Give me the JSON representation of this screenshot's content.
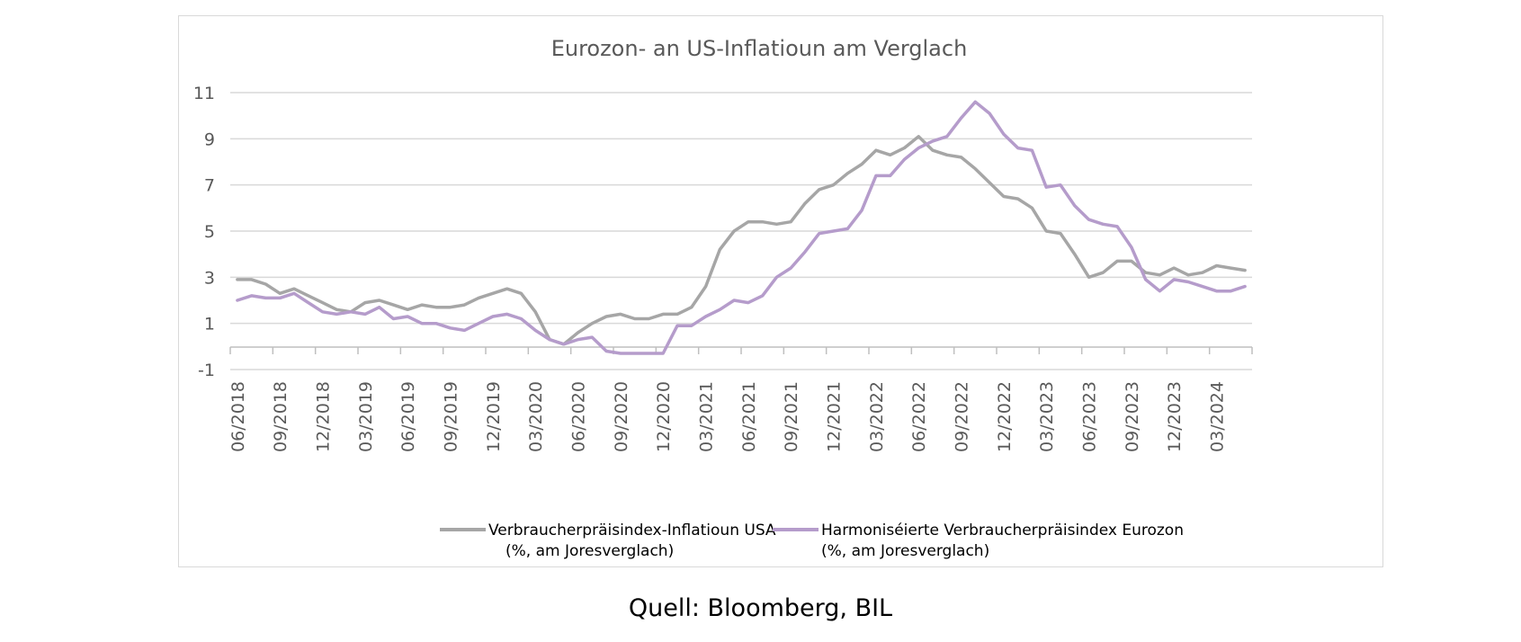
{
  "source": "Quell: Bloomberg, BIL",
  "chart_data": {
    "type": "line",
    "title": "Eurozon- an US-Inflatioun am Verglach",
    "xlabel": "",
    "ylabel": "",
    "ylim": [
      -1,
      11
    ],
    "yticks": [
      11,
      9,
      7,
      5,
      3,
      1,
      -1
    ],
    "grid": true,
    "legend_position": "bottom",
    "x": [
      "06/2018",
      "07/2018",
      "08/2018",
      "09/2018",
      "10/2018",
      "11/2018",
      "12/2018",
      "01/2019",
      "02/2019",
      "03/2019",
      "04/2019",
      "05/2019",
      "06/2019",
      "07/2019",
      "08/2019",
      "09/2019",
      "10/2019",
      "11/2019",
      "12/2019",
      "01/2020",
      "02/2020",
      "03/2020",
      "04/2020",
      "05/2020",
      "06/2020",
      "07/2020",
      "08/2020",
      "09/2020",
      "10/2020",
      "11/2020",
      "12/2020",
      "01/2021",
      "02/2021",
      "03/2021",
      "04/2021",
      "05/2021",
      "06/2021",
      "07/2021",
      "08/2021",
      "09/2021",
      "10/2021",
      "11/2021",
      "12/2021",
      "01/2022",
      "02/2022",
      "03/2022",
      "04/2022",
      "05/2022",
      "06/2022",
      "07/2022",
      "08/2022",
      "09/2022",
      "10/2022",
      "11/2022",
      "12/2022",
      "01/2023",
      "02/2023",
      "03/2023",
      "04/2023",
      "05/2023",
      "06/2023",
      "07/2023",
      "08/2023",
      "09/2023",
      "10/2023",
      "11/2023",
      "12/2023",
      "01/2024",
      "02/2024",
      "03/2024",
      "04/2024",
      "05/2024"
    ],
    "xtick_labels": [
      "06/2018",
      "09/2018",
      "12/2018",
      "03/2019",
      "06/2019",
      "09/2019",
      "12/2019",
      "03/2020",
      "06/2020",
      "09/2020",
      "12/2020",
      "03/2021",
      "06/2021",
      "09/2021",
      "12/2021",
      "03/2022",
      "06/2022",
      "09/2022",
      "12/2022",
      "03/2023",
      "06/2023",
      "09/2023",
      "12/2023",
      "03/2024"
    ],
    "series": [
      {
        "name": "Verbraucherpräisindex-Inflatioun USA",
        "name_line2": "(%, am Joresverglach)",
        "color": "#a6a6a6",
        "values": [
          2.9,
          2.9,
          2.7,
          2.3,
          2.5,
          2.2,
          1.9,
          1.6,
          1.5,
          1.9,
          2.0,
          1.8,
          1.6,
          1.8,
          1.7,
          1.7,
          1.8,
          2.1,
          2.3,
          2.5,
          2.3,
          1.5,
          0.3,
          0.1,
          0.6,
          1.0,
          1.3,
          1.4,
          1.2,
          1.2,
          1.4,
          1.4,
          1.7,
          2.6,
          4.2,
          5.0,
          5.4,
          5.4,
          5.3,
          5.4,
          6.2,
          6.8,
          7.0,
          7.5,
          7.9,
          8.5,
          8.3,
          8.6,
          9.1,
          8.5,
          8.3,
          8.2,
          7.7,
          7.1,
          6.5,
          6.4,
          6.0,
          5.0,
          4.9,
          4.0,
          3.0,
          3.2,
          3.7,
          3.7,
          3.2,
          3.1,
          3.4,
          3.1,
          3.2,
          3.5,
          3.4,
          3.3
        ]
      },
      {
        "name": "Harmoniséierte Verbraucherpräisindex Eurozon",
        "name_line2": "(%, am Joresverglach)",
        "color": "#b59ccb",
        "values": [
          2.0,
          2.2,
          2.1,
          2.1,
          2.3,
          1.9,
          1.5,
          1.4,
          1.5,
          1.4,
          1.7,
          1.2,
          1.3,
          1.0,
          1.0,
          0.8,
          0.7,
          1.0,
          1.3,
          1.4,
          1.2,
          0.7,
          0.3,
          0.1,
          0.3,
          0.4,
          -0.2,
          -0.3,
          -0.3,
          -0.3,
          -0.3,
          0.9,
          0.9,
          1.3,
          1.6,
          2.0,
          1.9,
          2.2,
          3.0,
          3.4,
          4.1,
          4.9,
          5.0,
          5.1,
          5.9,
          7.4,
          7.4,
          8.1,
          8.6,
          8.9,
          9.1,
          9.9,
          10.6,
          10.1,
          9.2,
          8.6,
          8.5,
          6.9,
          7.0,
          6.1,
          5.5,
          5.3,
          5.2,
          4.3,
          2.9,
          2.4,
          2.9,
          2.8,
          2.6,
          2.4,
          2.4,
          2.6
        ]
      }
    ]
  }
}
